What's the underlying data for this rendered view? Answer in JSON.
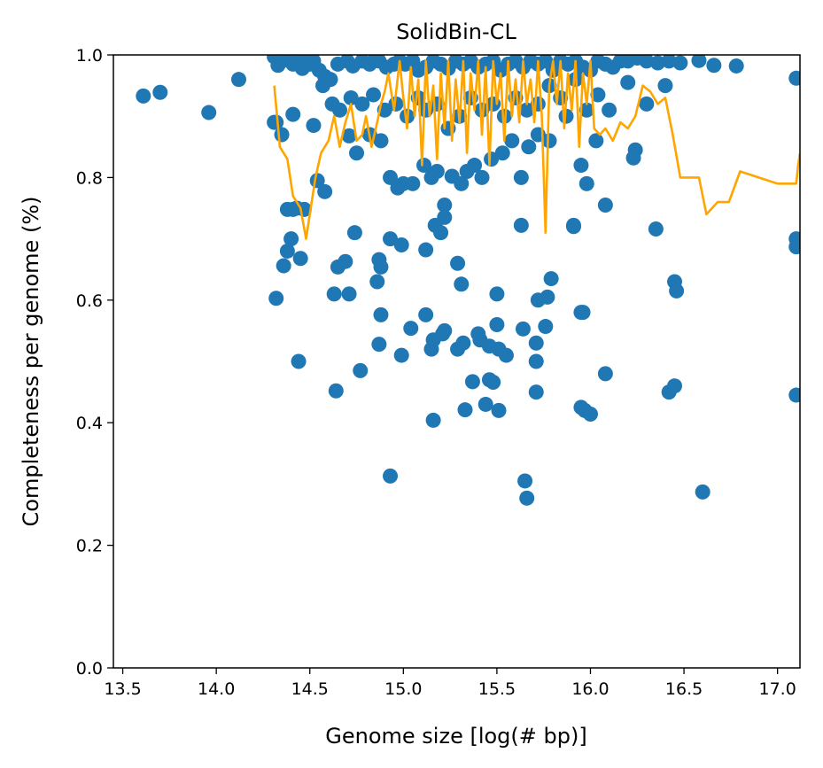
{
  "chart_data": {
    "type": "scatter",
    "title": "SolidBin-CL",
    "xlabel": "Genome size [log(# bp)]",
    "ylabel": "Completeness per genome (%)",
    "xlim": [
      13.45,
      17.12
    ],
    "ylim": [
      0.0,
      1.0
    ],
    "xticks": [
      "13.5",
      "14.0",
      "14.5",
      "15.0",
      "15.5",
      "16.0",
      "16.5",
      "17.0"
    ],
    "yticks": [
      "0.0",
      "0.2",
      "0.4",
      "0.6",
      "0.8",
      "1.0"
    ],
    "grid": false,
    "legend": "none",
    "colors": {
      "points": "#1f77b4",
      "line": "#ffa500"
    },
    "series": [
      {
        "kind": "scatter",
        "x": [
          13.61,
          13.7,
          13.96,
          14.12,
          14.31,
          14.33,
          14.35,
          14.38,
          14.41,
          14.44,
          14.46,
          14.48,
          14.5,
          14.52,
          14.55,
          14.58,
          14.61,
          14.65,
          14.7,
          14.73,
          14.78,
          14.82,
          14.85,
          14.87,
          14.91,
          14.95,
          14.98,
          15.01,
          15.05,
          15.08,
          15.12,
          15.16,
          15.2,
          15.24,
          15.28,
          15.32,
          15.36,
          15.4,
          15.44,
          15.48,
          15.52,
          15.56,
          15.6,
          15.64,
          15.68,
          15.72,
          15.76,
          15.8,
          15.84,
          15.88,
          15.92,
          15.96,
          16.0,
          16.04,
          16.08,
          16.12,
          16.16,
          16.2,
          16.25,
          16.3,
          16.36,
          16.42,
          16.48,
          16.58,
          16.66,
          16.78,
          17.1,
          14.31,
          14.35,
          14.41,
          14.52,
          14.57,
          14.62,
          14.66,
          14.72,
          14.78,
          14.84,
          14.9,
          14.96,
          15.02,
          15.08,
          15.12,
          15.18,
          15.24,
          15.3,
          15.36,
          15.42,
          15.48,
          15.54,
          15.6,
          15.66,
          15.72,
          15.78,
          15.84,
          15.92,
          15.98,
          16.04,
          16.1,
          16.2,
          16.3,
          16.4,
          14.32,
          14.38,
          14.41,
          14.43,
          14.47,
          14.54,
          14.58,
          14.71,
          14.75,
          14.82,
          14.88,
          14.93,
          14.97,
          15.0,
          15.05,
          15.11,
          15.15,
          15.18,
          15.22,
          15.26,
          15.31,
          15.34,
          15.38,
          15.42,
          15.47,
          15.53,
          15.58,
          15.63,
          15.67,
          15.72,
          15.78,
          15.87,
          15.91,
          15.95,
          15.98,
          16.03,
          16.08,
          16.23,
          16.24,
          16.35,
          14.32,
          14.36,
          14.38,
          14.4,
          14.45,
          14.65,
          14.69,
          14.71,
          14.74,
          14.86,
          14.87,
          14.88,
          14.93,
          14.99,
          15.12,
          15.17,
          15.2,
          15.22,
          15.29,
          15.31,
          15.5,
          15.63,
          15.72,
          15.77,
          15.79,
          15.91,
          15.96,
          16.45,
          16.46,
          17.1,
          17.1,
          14.44,
          14.63,
          14.77,
          14.87,
          14.88,
          14.99,
          15.04,
          15.12,
          15.15,
          15.16,
          15.21,
          15.22,
          15.29,
          15.32,
          15.4,
          15.41,
          15.46,
          15.5,
          15.51,
          15.55,
          15.64,
          15.71,
          15.71,
          15.76,
          15.95,
          14.64,
          15.16,
          15.33,
          15.37,
          15.44,
          15.46,
          15.48,
          15.51,
          15.71,
          15.95,
          15.97,
          16.0,
          16.08,
          16.42,
          16.45,
          17.1,
          14.93,
          15.65,
          15.66,
          16.6
        ],
        "y": [
          0.933,
          0.939,
          0.906,
          0.96,
          0.997,
          0.983,
          0.99,
          0.995,
          0.985,
          0.99,
          0.978,
          0.992,
          0.985,
          0.99,
          0.975,
          0.965,
          0.96,
          0.985,
          0.99,
          0.982,
          0.99,
          0.985,
          0.995,
          0.99,
          0.98,
          0.985,
          0.99,
          0.985,
          0.99,
          0.975,
          0.98,
          0.99,
          0.985,
          0.978,
          0.99,
          0.985,
          0.99,
          0.98,
          0.985,
          0.99,
          0.975,
          0.985,
          0.99,
          0.98,
          0.99,
          0.985,
          0.99,
          0.975,
          0.99,
          0.985,
          0.99,
          0.98,
          0.975,
          0.99,
          0.985,
          0.98,
          0.99,
          0.99,
          0.995,
          0.99,
          0.987,
          0.99,
          0.987,
          0.991,
          0.983,
          0.982,
          0.962,
          0.89,
          0.87,
          0.903,
          0.885,
          0.95,
          0.92,
          0.91,
          0.93,
          0.92,
          0.935,
          0.91,
          0.92,
          0.9,
          0.93,
          0.91,
          0.92,
          0.88,
          0.9,
          0.93,
          0.91,
          0.92,
          0.9,
          0.93,
          0.91,
          0.92,
          0.95,
          0.93,
          0.96,
          0.91,
          0.935,
          0.91,
          0.955,
          0.92,
          0.95,
          0.89,
          0.748,
          0.748,
          0.75,
          0.748,
          0.795,
          0.777,
          0.868,
          0.84,
          0.87,
          0.86,
          0.8,
          0.783,
          0.79,
          0.79,
          0.82,
          0.8,
          0.81,
          0.755,
          0.802,
          0.79,
          0.81,
          0.82,
          0.8,
          0.83,
          0.84,
          0.86,
          0.8,
          0.85,
          0.87,
          0.86,
          0.9,
          0.72,
          0.82,
          0.79,
          0.86,
          0.755,
          0.832,
          0.845,
          0.716,
          0.603,
          0.656,
          0.68,
          0.7,
          0.668,
          0.654,
          0.663,
          0.61,
          0.71,
          0.63,
          0.666,
          0.654,
          0.7,
          0.69,
          0.682,
          0.722,
          0.71,
          0.735,
          0.66,
          0.626,
          0.61,
          0.722,
          0.6,
          0.605,
          0.635,
          0.722,
          0.58,
          0.63,
          0.615,
          0.7,
          0.687,
          0.5,
          0.61,
          0.485,
          0.528,
          0.576,
          0.51,
          0.554,
          0.576,
          0.52,
          0.535,
          0.545,
          0.55,
          0.52,
          0.53,
          0.545,
          0.535,
          0.525,
          0.56,
          0.52,
          0.51,
          0.553,
          0.53,
          0.5,
          0.557,
          0.58,
          0.452,
          0.404,
          0.421,
          0.467,
          0.43,
          0.47,
          0.466,
          0.42,
          0.45,
          0.425,
          0.42,
          0.414,
          0.48,
          0.45,
          0.46,
          0.445,
          0.313,
          0.305,
          0.277,
          0.287
        ]
      },
      {
        "kind": "line",
        "x": [
          14.31,
          14.34,
          14.38,
          14.41,
          14.45,
          14.48,
          14.5,
          14.53,
          14.56,
          14.6,
          14.63,
          14.66,
          14.69,
          14.72,
          14.75,
          14.78,
          14.8,
          14.83,
          14.86,
          14.88,
          14.9,
          14.92,
          14.95,
          14.98,
          15.0,
          15.02,
          15.04,
          15.06,
          15.08,
          15.1,
          15.12,
          15.14,
          15.16,
          15.18,
          15.2,
          15.22,
          15.24,
          15.26,
          15.28,
          15.3,
          15.32,
          15.34,
          15.36,
          15.38,
          15.4,
          15.42,
          15.44,
          15.46,
          15.48,
          15.5,
          15.52,
          15.54,
          15.56,
          15.58,
          15.6,
          15.62,
          15.64,
          15.66,
          15.68,
          15.7,
          15.72,
          15.74,
          15.76,
          15.78,
          15.8,
          15.82,
          15.84,
          15.86,
          15.88,
          15.9,
          15.92,
          15.94,
          15.96,
          15.98,
          16.0,
          16.02,
          16.05,
          16.08,
          16.12,
          16.16,
          16.2,
          16.24,
          16.28,
          16.32,
          16.36,
          16.4,
          16.44,
          16.48,
          16.52,
          16.58,
          16.62,
          16.68,
          16.74,
          16.8,
          16.9,
          17.0,
          17.1,
          17.11,
          17.12
        ],
        "y": [
          0.95,
          0.85,
          0.83,
          0.77,
          0.75,
          0.7,
          0.74,
          0.8,
          0.84,
          0.86,
          0.9,
          0.85,
          0.89,
          0.92,
          0.86,
          0.87,
          0.9,
          0.85,
          0.89,
          0.92,
          0.94,
          0.97,
          0.91,
          0.99,
          0.93,
          0.88,
          0.98,
          0.9,
          0.96,
          0.82,
          0.99,
          0.9,
          0.95,
          0.83,
          0.97,
          0.88,
          0.99,
          0.86,
          0.96,
          0.89,
          0.99,
          0.84,
          0.97,
          0.91,
          0.99,
          0.87,
          0.98,
          0.82,
          0.99,
          0.92,
          0.97,
          0.86,
          0.99,
          0.9,
          0.96,
          0.89,
          0.99,
          0.92,
          0.96,
          0.89,
          0.99,
          0.9,
          0.71,
          0.95,
          0.99,
          0.92,
          0.99,
          0.88,
          0.97,
          0.91,
          0.99,
          0.85,
          0.97,
          0.92,
          0.99,
          0.88,
          0.87,
          0.88,
          0.86,
          0.89,
          0.88,
          0.9,
          0.95,
          0.94,
          0.92,
          0.93,
          0.87,
          0.8,
          0.8,
          0.8,
          0.74,
          0.76,
          0.76,
          0.81,
          0.8,
          0.79,
          0.79,
          0.82,
          0.84
        ]
      }
    ]
  }
}
